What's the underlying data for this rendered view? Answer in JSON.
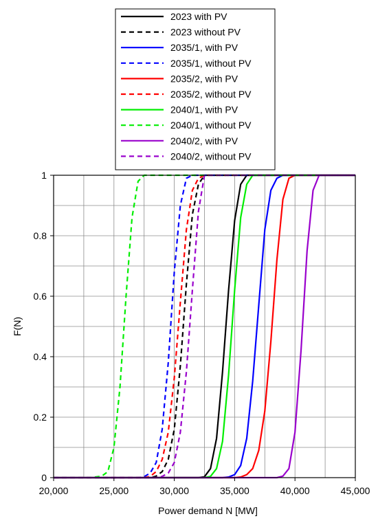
{
  "chart_data": {
    "type": "line",
    "xlabel": "Power demand  N [MW]",
    "ylabel": "F(N)",
    "xlim": [
      20000,
      45000
    ],
    "ylim": [
      0,
      1
    ],
    "x_ticks": [
      20000,
      25000,
      30000,
      35000,
      40000,
      45000
    ],
    "x_tick_labels": [
      "20,000",
      "25,000",
      "30,000",
      "35,000",
      "40,000",
      "45,000"
    ],
    "y_ticks": [
      0,
      0.2,
      0.4,
      0.6,
      0.8,
      1
    ],
    "y_tick_labels": [
      "0",
      "0.2",
      "0.4",
      "0.6",
      "0.8",
      "1"
    ],
    "grid": true,
    "legend_position": "top-center",
    "x_points": [
      20000,
      22000,
      23000,
      24000,
      24500,
      25000,
      25500,
      26000,
      26500,
      27000,
      27500,
      28000,
      28500,
      29000,
      29500,
      30000,
      30500,
      31000,
      31500,
      32000,
      32500,
      33000,
      33500,
      34000,
      34500,
      35000,
      35500,
      36000,
      36500,
      37000,
      37500,
      38000,
      38500,
      39000,
      39500,
      40000,
      40500,
      41000,
      41500,
      42000,
      42500,
      43000,
      45000
    ],
    "series": [
      {
        "name": "2023 with PV",
        "color": "#000000",
        "dash": false,
        "values": [
          0,
          0,
          0,
          0,
          0,
          0,
          0,
          0,
          0,
          0,
          0,
          0,
          0,
          0,
          0,
          0,
          0,
          0,
          0,
          0,
          0.003,
          0.03,
          0.13,
          0.35,
          0.62,
          0.85,
          0.97,
          1,
          1,
          1,
          1,
          1,
          1,
          1,
          1,
          1,
          1,
          1,
          1,
          1,
          1,
          1,
          1
        ]
      },
      {
        "name": "2023 without PV",
        "color": "#000000",
        "dash": true,
        "values": [
          0,
          0,
          0,
          0,
          0,
          0,
          0,
          0,
          0,
          0,
          0,
          0,
          0.005,
          0.02,
          0.06,
          0.16,
          0.37,
          0.64,
          0.87,
          0.97,
          1,
          1,
          1,
          1,
          1,
          1,
          1,
          1,
          1,
          1,
          1,
          1,
          1,
          1,
          1,
          1,
          1,
          1,
          1,
          1,
          1,
          1,
          1
        ]
      },
      {
        "name": "2035/1, with PV",
        "color": "#0000ff",
        "dash": false,
        "values": [
          0,
          0,
          0,
          0,
          0,
          0,
          0,
          0,
          0,
          0,
          0,
          0,
          0,
          0,
          0,
          0,
          0,
          0,
          0,
          0,
          0,
          0,
          0,
          0,
          0.002,
          0.01,
          0.04,
          0.13,
          0.32,
          0.57,
          0.82,
          0.95,
          0.99,
          1,
          1,
          1,
          1,
          1,
          1,
          1,
          1,
          1,
          1
        ]
      },
      {
        "name": "2035/1, without PV",
        "color": "#0000ff",
        "dash": true,
        "values": [
          0,
          0,
          0,
          0,
          0,
          0,
          0,
          0,
          0,
          0,
          0.003,
          0.015,
          0.05,
          0.16,
          0.38,
          0.68,
          0.9,
          0.99,
          1,
          1,
          1,
          1,
          1,
          1,
          1,
          1,
          1,
          1,
          1,
          1,
          1,
          1,
          1,
          1,
          1,
          1,
          1,
          1,
          1,
          1,
          1,
          1,
          1
        ]
      },
      {
        "name": "2035/2, with PV",
        "color": "#ff0000",
        "dash": false,
        "values": [
          0,
          0,
          0,
          0,
          0,
          0,
          0,
          0,
          0,
          0,
          0,
          0,
          0,
          0,
          0,
          0,
          0,
          0,
          0,
          0,
          0,
          0,
          0,
          0,
          0,
          0,
          0.002,
          0.01,
          0.03,
          0.09,
          0.22,
          0.45,
          0.72,
          0.92,
          0.99,
          1,
          1,
          1,
          1,
          1,
          1,
          1,
          1
        ]
      },
      {
        "name": "2035/2, without PV",
        "color": "#ff0000",
        "dash": true,
        "values": [
          0,
          0,
          0,
          0,
          0,
          0,
          0,
          0,
          0,
          0,
          0,
          0.004,
          0.02,
          0.06,
          0.15,
          0.33,
          0.58,
          0.82,
          0.95,
          0.99,
          1,
          1,
          1,
          1,
          1,
          1,
          1,
          1,
          1,
          1,
          1,
          1,
          1,
          1,
          1,
          1,
          1,
          1,
          1,
          1,
          1,
          1,
          1
        ]
      },
      {
        "name": "2040/1, with PV",
        "color": "#00ee00",
        "dash": false,
        "values": [
          0,
          0,
          0,
          0,
          0,
          0,
          0,
          0,
          0,
          0,
          0,
          0,
          0,
          0,
          0,
          0,
          0,
          0,
          0,
          0,
          0,
          0.004,
          0.03,
          0.12,
          0.34,
          0.62,
          0.86,
          0.97,
          1,
          1,
          1,
          1,
          1,
          1,
          1,
          1,
          1,
          1,
          1,
          1,
          1,
          1,
          1
        ]
      },
      {
        "name": "2040/1, without PV",
        "color": "#00ee00",
        "dash": true,
        "values": [
          0,
          0,
          0,
          0.005,
          0.02,
          0.1,
          0.3,
          0.6,
          0.86,
          0.98,
          1,
          1,
          1,
          1,
          1,
          1,
          1,
          1,
          1,
          1,
          1,
          1,
          1,
          1,
          1,
          1,
          1,
          1,
          1,
          1,
          1,
          1,
          1,
          1,
          1,
          1,
          1,
          1,
          1,
          1,
          1,
          1,
          1
        ]
      },
      {
        "name": "2040/2, with PV",
        "color": "#9900cc",
        "dash": false,
        "values": [
          0,
          0,
          0,
          0,
          0,
          0,
          0,
          0,
          0,
          0,
          0,
          0,
          0,
          0,
          0,
          0,
          0,
          0,
          0,
          0,
          0,
          0,
          0,
          0,
          0,
          0,
          0,
          0,
          0,
          0,
          0,
          0,
          0,
          0.005,
          0.03,
          0.15,
          0.42,
          0.75,
          0.95,
          1,
          1,
          1,
          1
        ]
      },
      {
        "name": "2040/2, without PV",
        "color": "#9900cc",
        "dash": true,
        "values": [
          0,
          0,
          0,
          0,
          0,
          0,
          0,
          0,
          0,
          0,
          0,
          0,
          0,
          0.004,
          0.015,
          0.05,
          0.15,
          0.35,
          0.62,
          0.88,
          1,
          1,
          1,
          1,
          1,
          1,
          1,
          1,
          1,
          1,
          1,
          1,
          1,
          1,
          1,
          1,
          1,
          1,
          1,
          1,
          1,
          1,
          1
        ]
      }
    ]
  }
}
